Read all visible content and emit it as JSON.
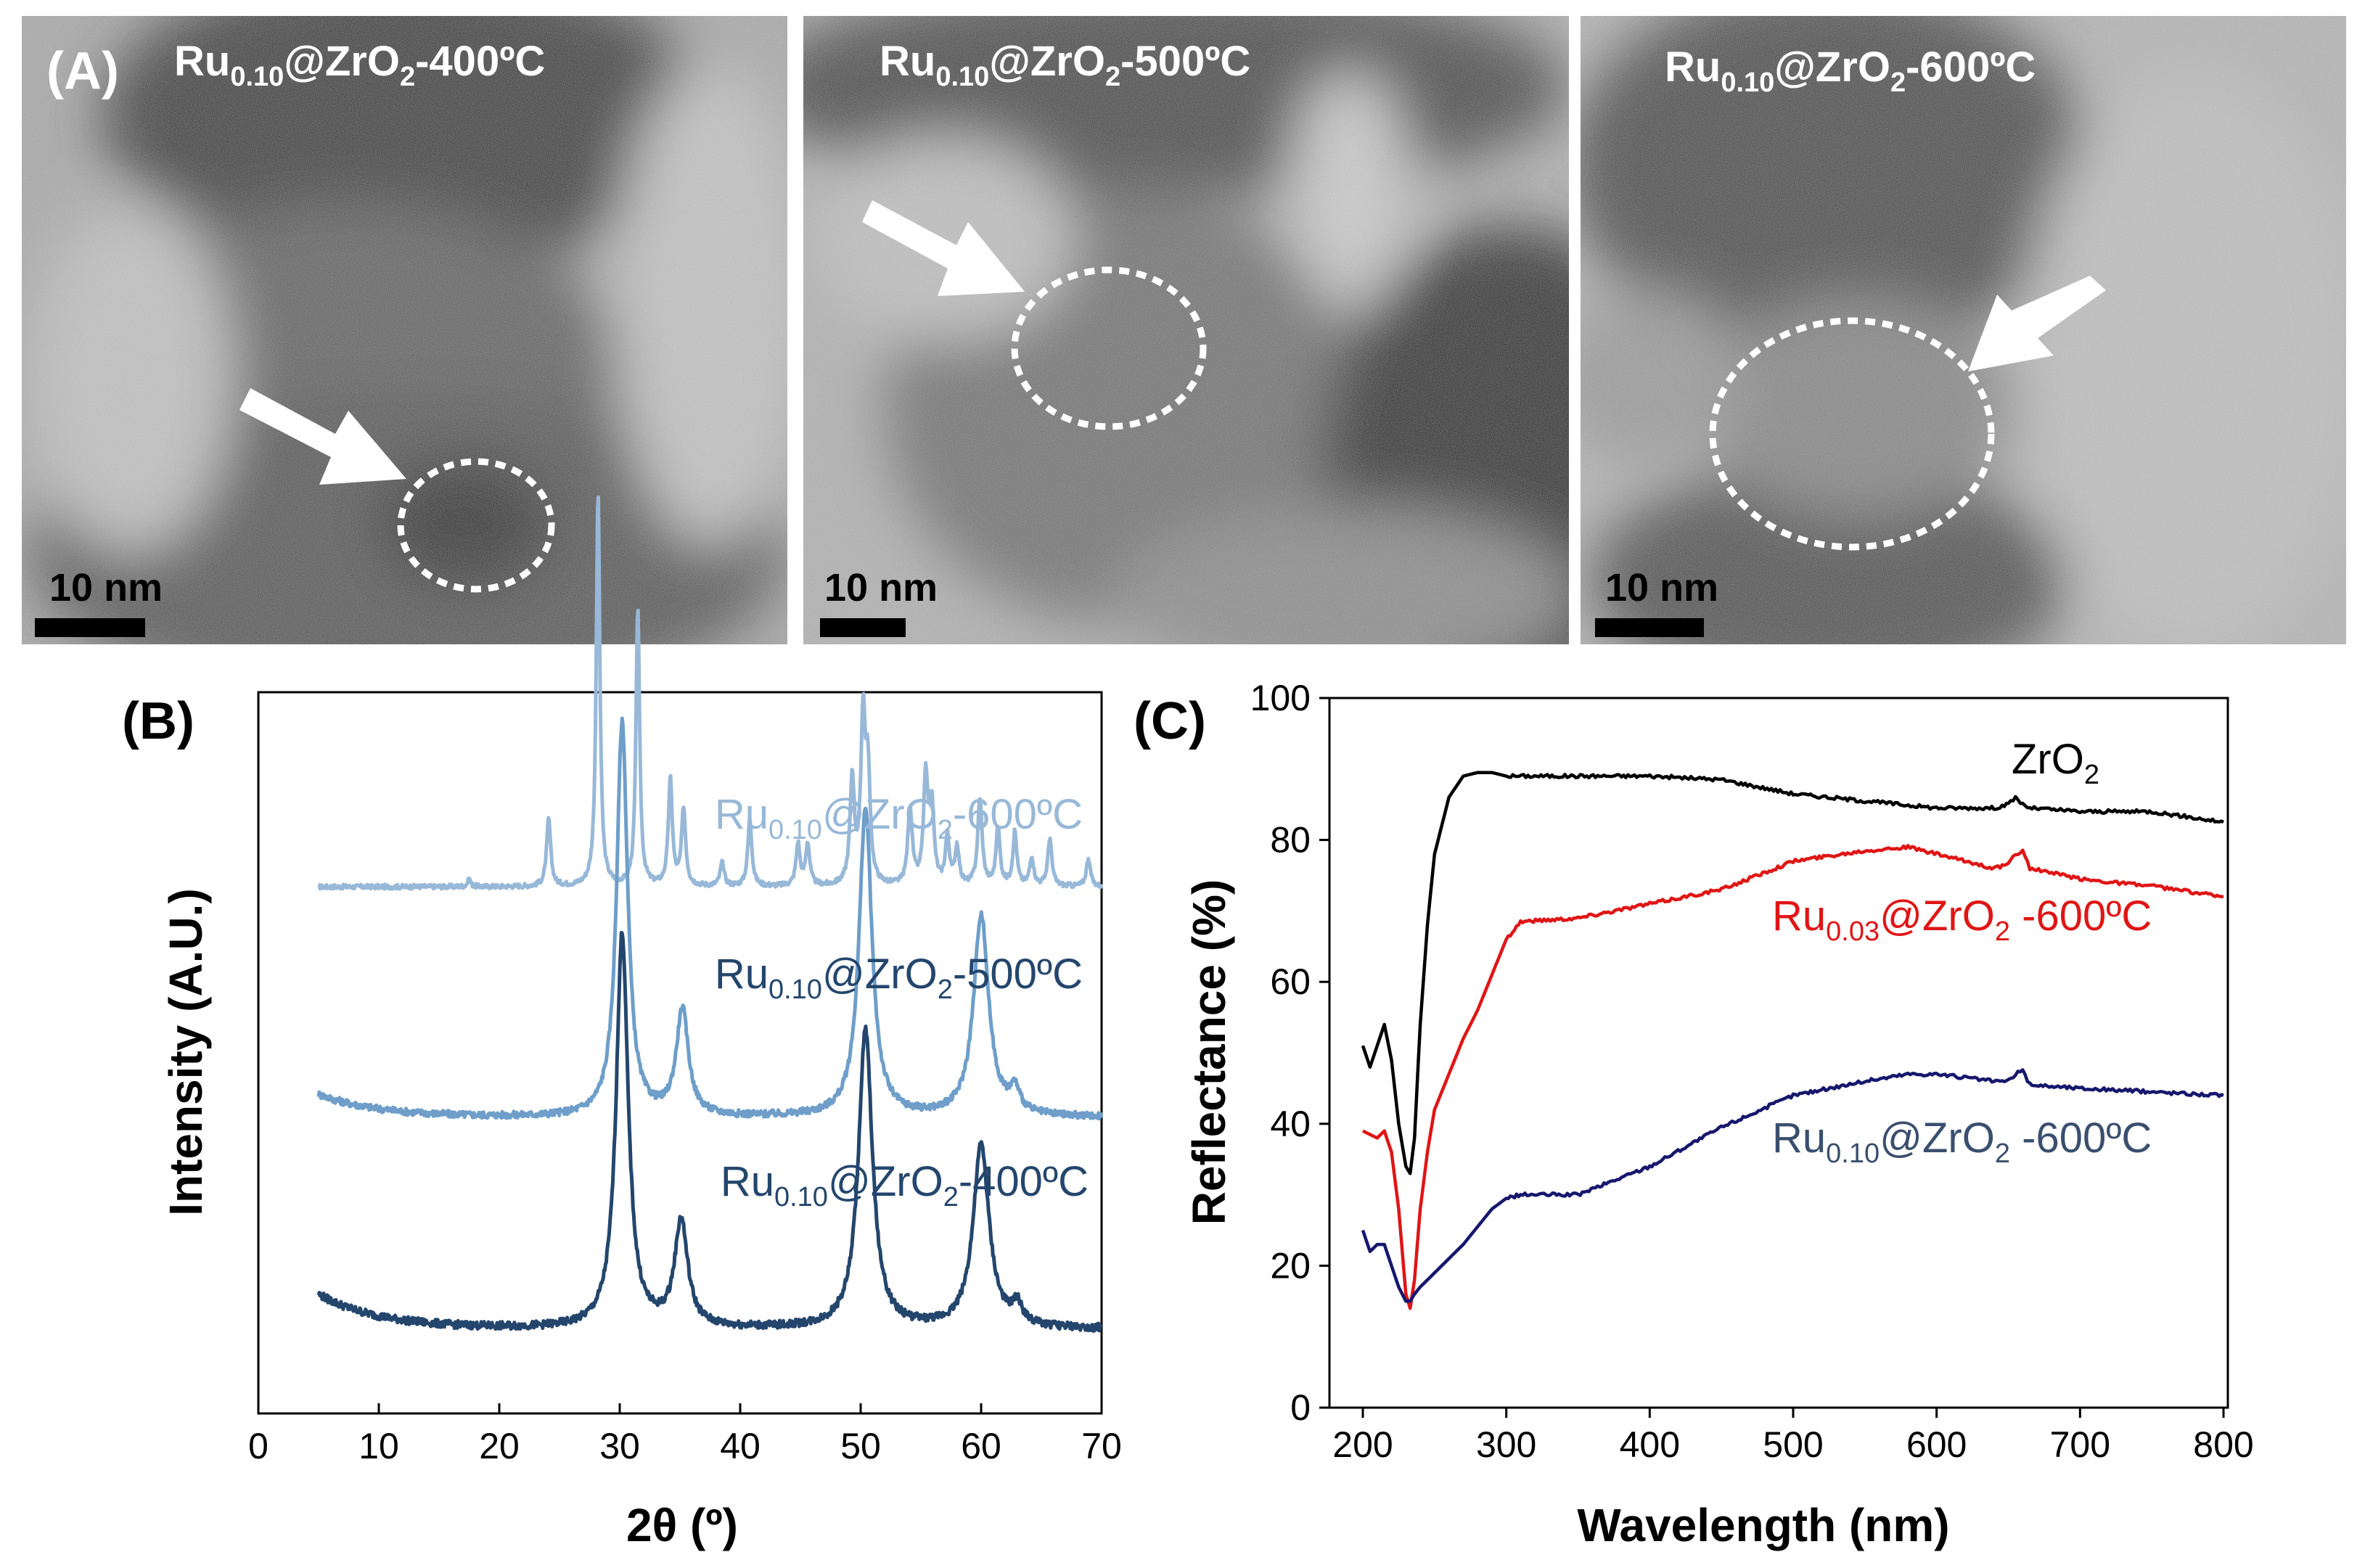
{
  "panel_a": {
    "label": "(A)",
    "images": [
      {
        "sample": {
          "base": "Ru",
          "sub": "0.10",
          "mid": "@ZrO",
          "sub2": "2",
          "tail": "-400ºC"
        },
        "scale_bar": "10 nm"
      },
      {
        "sample": {
          "base": "Ru",
          "sub": "0.10",
          "mid": "@ZrO",
          "sub2": "2",
          "tail": "-500ºC"
        },
        "scale_bar": "10 nm"
      },
      {
        "sample": {
          "base": "Ru",
          "sub": "0.10",
          "mid": "@ZrO",
          "sub2": "2",
          "tail": "-600ºC"
        },
        "scale_bar": "10 nm"
      }
    ],
    "colors": {
      "highlight": "#ffffff"
    }
  },
  "chart_data": [
    {
      "id": "B",
      "panel_label": "(B)",
      "type": "line",
      "title": "",
      "xlabel": "2θ (º)",
      "ylabel": "Intensity (A.U.)",
      "xlim": [
        0,
        70
      ],
      "xticks": [
        0,
        10,
        20,
        30,
        40,
        50,
        60,
        70
      ],
      "yticks": [],
      "grid": false,
      "series": [
        {
          "name": {
            "base": "Ru",
            "sub": "0.10",
            "mid": "@ZrO",
            "sub2": "2",
            "tail": "-600ºC"
          },
          "color": "#98b8d8",
          "offset": 2.3,
          "baseline": 0.05,
          "noise": 0.012,
          "peaks": [
            [
              17.5,
              0.04,
              0.15
            ],
            [
              24.1,
              0.35,
              0.2
            ],
            [
              28.2,
              2.05,
              0.18
            ],
            [
              31.5,
              1.45,
              0.18
            ],
            [
              34.2,
              0.55,
              0.2
            ],
            [
              35.3,
              0.4,
              0.2
            ],
            [
              38.5,
              0.12,
              0.2
            ],
            [
              40.8,
              0.35,
              0.2
            ],
            [
              44.8,
              0.22,
              0.2
            ],
            [
              45.6,
              0.22,
              0.2
            ],
            [
              49.3,
              0.55,
              0.22
            ],
            [
              50.2,
              0.85,
              0.22
            ],
            [
              50.6,
              0.55,
              0.22
            ],
            [
              54.1,
              0.4,
              0.22
            ],
            [
              55.4,
              0.55,
              0.22
            ],
            [
              55.9,
              0.4,
              0.22
            ],
            [
              57.2,
              0.25,
              0.2
            ],
            [
              58.0,
              0.2,
              0.2
            ],
            [
              59.9,
              0.45,
              0.22
            ],
            [
              61.4,
              0.3,
              0.2
            ],
            [
              62.8,
              0.28,
              0.2
            ],
            [
              64.2,
              0.15,
              0.2
            ],
            [
              65.7,
              0.25,
              0.2
            ],
            [
              68.9,
              0.15,
              0.2
            ]
          ]
        },
        {
          "name": {
            "base": "Ru",
            "sub": "0.10",
            "mid": "@ZrO",
            "sub2": "2",
            "tail": "-500ºC"
          },
          "color": "#6e9ec9",
          "offset": 1.1,
          "baseline": 0.05,
          "noise": 0.018,
          "slope": [
            0.12,
            5
          ],
          "peaks": [
            [
              30.2,
              2.05,
              0.55
            ],
            [
              35.2,
              0.55,
              0.6
            ],
            [
              50.4,
              1.6,
              0.65
            ],
            [
              60.0,
              1.05,
              0.75
            ],
            [
              62.8,
              0.12,
              0.5
            ]
          ]
        },
        {
          "name": {
            "base": "Ru",
            "sub": "0.10",
            "mid": "@ZrO",
            "sub2": "2",
            "tail": "-400ºC"
          },
          "color": "#24466d",
          "offset": 0.0,
          "baseline": 0.05,
          "noise": 0.02,
          "slope": [
            0.18,
            5
          ],
          "peaks": [
            [
              30.2,
              2.05,
              0.6
            ],
            [
              35.1,
              0.55,
              0.65
            ],
            [
              50.4,
              1.55,
              0.7
            ],
            [
              60.0,
              0.95,
              0.8
            ],
            [
              63.0,
              0.1,
              0.5
            ]
          ]
        }
      ]
    },
    {
      "id": "C",
      "panel_label": "(C)",
      "type": "line",
      "title": "",
      "xlabel": "Wavelength (nm)",
      "ylabel": "Reflectance (%)",
      "xlim": [
        180,
        800
      ],
      "ylim": [
        0,
        100
      ],
      "xticks": [
        200,
        300,
        400,
        500,
        600,
        700,
        800
      ],
      "yticks": [
        0,
        20,
        40,
        60,
        80,
        100
      ],
      "grid": false,
      "series": [
        {
          "name": {
            "base": "ZrO",
            "sub": "",
            "mid": "",
            "sub2": "2",
            "tail": ""
          },
          "color": "#000000",
          "x": [
            200,
            205,
            210,
            215,
            220,
            225,
            230,
            233,
            236,
            240,
            245,
            250,
            260,
            270,
            280,
            290,
            300,
            350,
            400,
            450,
            500,
            550,
            600,
            640,
            650,
            655,
            660,
            665,
            700,
            750,
            800
          ],
          "y": [
            51,
            48,
            51,
            54,
            49,
            40,
            34,
            33,
            38,
            54,
            68,
            78,
            86,
            89,
            89.5,
            89.5,
            89,
            89,
            89,
            88.5,
            86.5,
            85.5,
            84.5,
            84.5,
            85,
            86,
            85,
            84.5,
            84,
            84,
            82.5
          ]
        },
        {
          "name": {
            "base": "Ru",
            "sub": "0.03",
            "mid": "@ZrO",
            "sub2": "2",
            "tail": " -600ºC"
          },
          "color": "#e01515",
          "x": [
            200,
            210,
            215,
            220,
            225,
            230,
            233,
            236,
            240,
            245,
            250,
            260,
            270,
            280,
            290,
            300,
            310,
            350,
            400,
            450,
            500,
            550,
            580,
            600,
            640,
            650,
            655,
            660,
            665,
            700,
            750,
            800
          ],
          "y": [
            39,
            38,
            39,
            36,
            28,
            16,
            14,
            18,
            28,
            36,
            42,
            47,
            52,
            56,
            61,
            66,
            68.5,
            69,
            71,
            73,
            77,
            78.5,
            79,
            78,
            76,
            76.5,
            78,
            78.5,
            76,
            74.5,
            73.5,
            72
          ]
        },
        {
          "name": {
            "base": "Ru",
            "sub": "0.10",
            "mid": "@ZrO",
            "sub2": "2",
            "tail": " -600ºC"
          },
          "color": "#16176c",
          "x": [
            200,
            205,
            210,
            215,
            220,
            225,
            230,
            233,
            236,
            240,
            250,
            260,
            270,
            280,
            290,
            300,
            310,
            350,
            400,
            450,
            500,
            550,
            580,
            600,
            640,
            650,
            655,
            660,
            665,
            700,
            750,
            800
          ],
          "y": [
            25,
            22,
            23,
            23,
            20,
            17,
            15,
            15,
            16,
            17,
            19,
            21,
            23,
            25.5,
            28,
            29.5,
            30,
            30,
            34,
            39.5,
            44,
            46,
            47,
            47,
            46,
            46,
            47,
            47.5,
            45.5,
            45,
            44.5,
            44
          ]
        }
      ]
    }
  ]
}
